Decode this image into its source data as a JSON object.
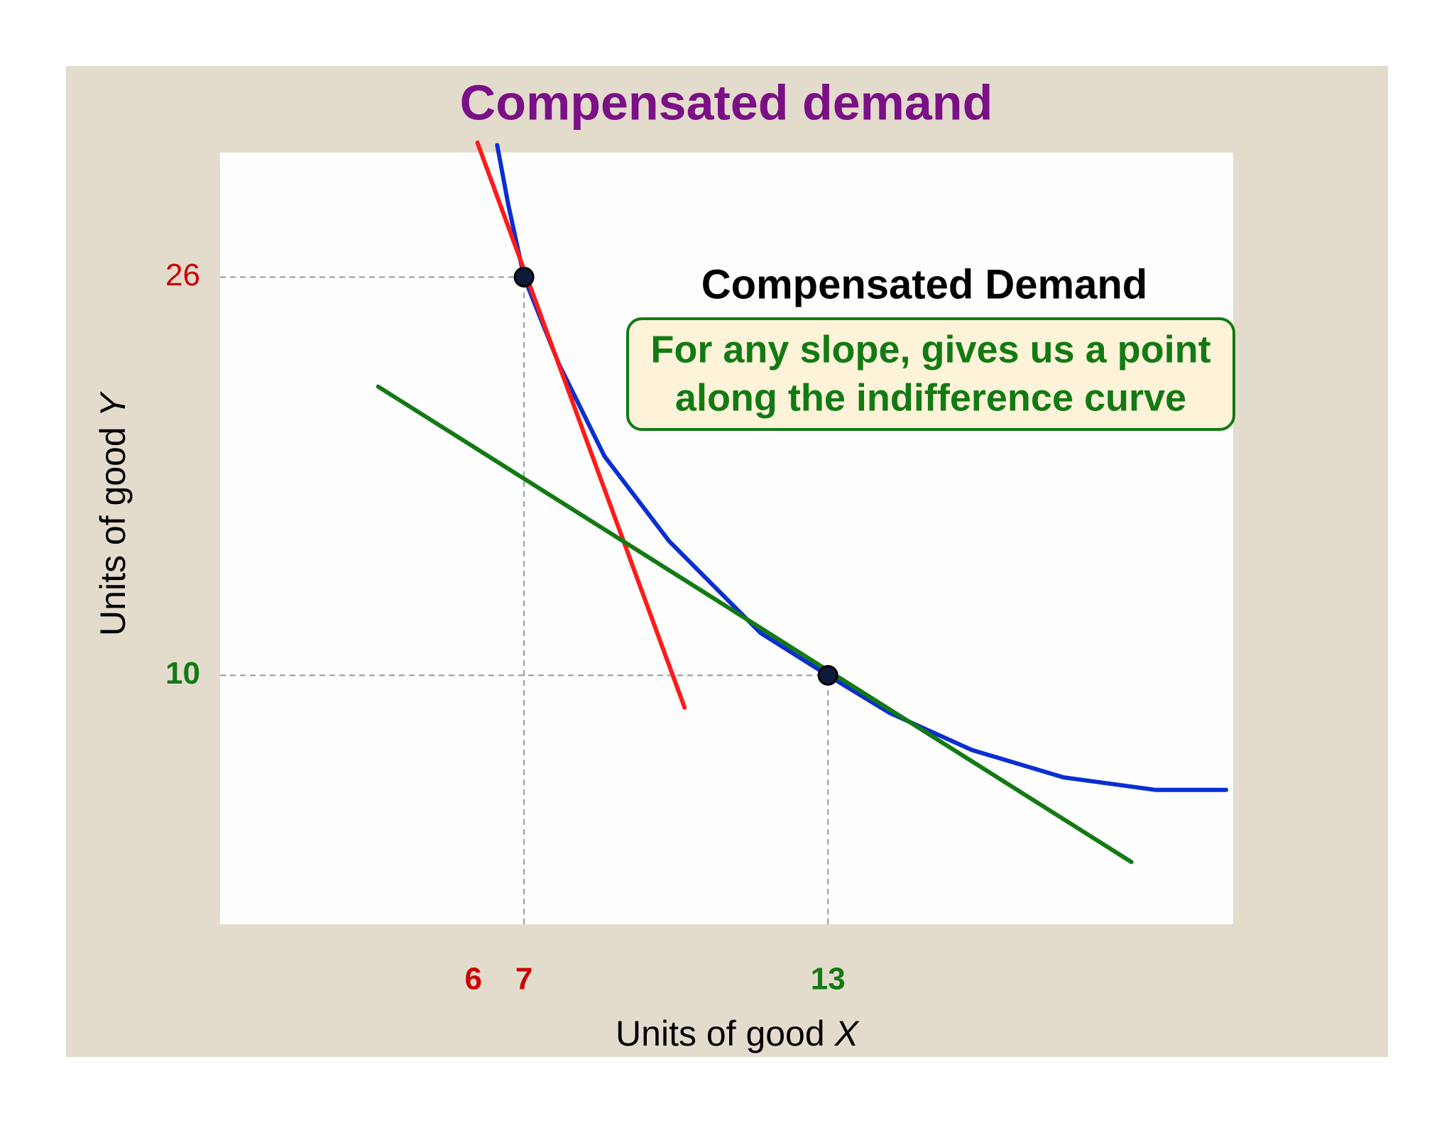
{
  "chart_data": {
    "type": "indifference",
    "title": "Compensated demand",
    "xlabel": {
      "text": "Units of good",
      "var": "X"
    },
    "ylabel": {
      "text": "Units of good",
      "var": "Y"
    },
    "xlim": [
      1,
      21
    ],
    "ylim": [
      0,
      31
    ],
    "xticks": [
      6,
      7,
      13
    ],
    "xtick_colors": [
      "#cc0000",
      "#cc0000",
      "#137a13"
    ],
    "yticks": [
      10,
      26
    ],
    "ytick_colors": [
      "#137a13",
      "#cc0000"
    ],
    "annotation": {
      "title": "Compensated Demand",
      "lines": [
        "For any slope, gives us a point",
        "along the indifference curve"
      ]
    },
    "series": [
      {
        "color": "#0a2fd0",
        "x": [
          6.47,
          6.69,
          7,
          7.69,
          8.59,
          9.86,
          11.67,
          13,
          14.21,
          15.84,
          17.65,
          19.46,
          20.86
        ],
        "values": [
          31.3,
          28.9,
          26,
          22.5,
          18.8,
          15.4,
          11.7,
          10,
          8.5,
          7.0,
          5.9,
          5.4,
          5.4
        ]
      },
      {
        "color": "#ff1a1a",
        "x": [
          6.08,
          10.17
        ],
        "values": [
          31.4,
          8.7
        ]
      },
      {
        "color": "#137a13",
        "x": [
          4.12,
          18.99
        ],
        "values": [
          21.6,
          2.5
        ]
      }
    ],
    "points": {
      "color": "#0d1a3a",
      "x": [
        7,
        13
      ],
      "values": [
        26,
        10
      ]
    }
  }
}
